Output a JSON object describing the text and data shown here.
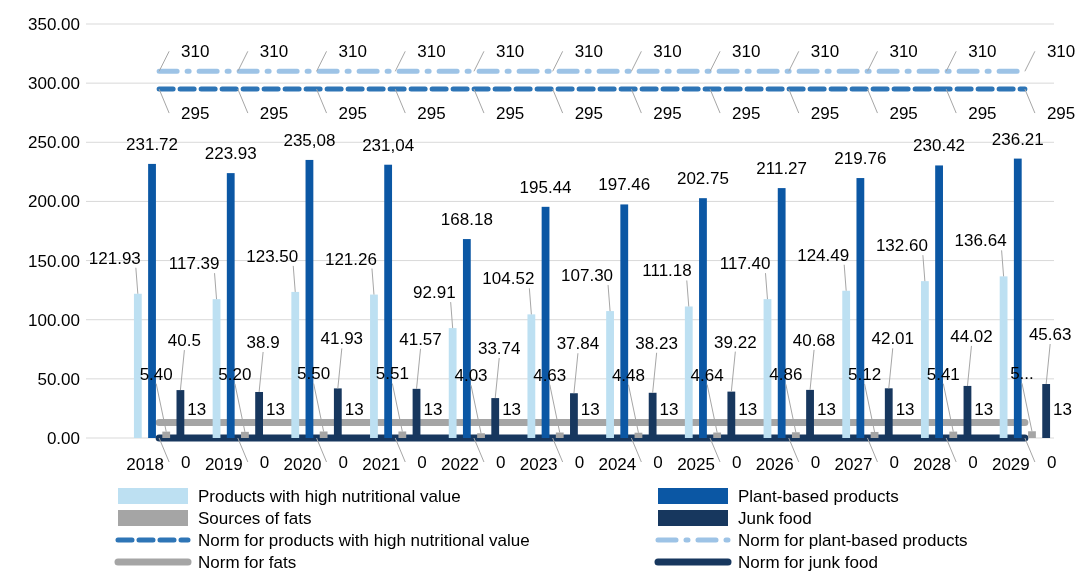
{
  "chart_data": {
    "type": "bar",
    "categories": [
      "2018",
      "2019",
      "2020",
      "2021",
      "2022",
      "2023",
      "2024",
      "2025",
      "2026",
      "2027",
      "2028",
      "2029"
    ],
    "series": [
      {
        "name": "Products with high nutritional value",
        "color": "#bde0f2",
        "values": [
          121.93,
          117.39,
          123.5,
          121.26,
          92.91,
          104.52,
          107.3,
          111.18,
          117.4,
          124.49,
          132.6,
          136.64
        ],
        "value_labels": [
          "121.93",
          "117.39",
          "123.50",
          "121.26",
          "92.91",
          "104.52",
          "107.30",
          "111.18",
          "117.40",
          "124.49",
          "132.60",
          "136.64"
        ]
      },
      {
        "name": "Plant-based products",
        "color": "#0b57a4",
        "values": [
          231.72,
          223.93,
          235.08,
          231.04,
          168.18,
          195.44,
          197.46,
          202.75,
          211.27,
          219.76,
          230.42,
          236.21
        ],
        "value_labels": [
          "231.72",
          "223.93",
          "235,08",
          "231,04",
          "168.18",
          "195.44",
          "197.46",
          "202.75",
          "211.27",
          "219.76",
          "230.42",
          "236.21"
        ]
      },
      {
        "name": "Sources of fats",
        "color": "#a5a5a5",
        "values": [
          5.4,
          5.2,
          5.5,
          5.51,
          4.03,
          4.63,
          4.48,
          4.64,
          4.86,
          5.12,
          5.41,
          5.7
        ],
        "value_labels": [
          "5.40",
          "5.20",
          "5.50",
          "5.51",
          "4.03",
          "4.63",
          "4.48",
          "4.64",
          "4.86",
          "5.12",
          "5.41",
          "5..."
        ]
      },
      {
        "name": "Junk food",
        "color": "#17375e",
        "values": [
          40.5,
          38.9,
          41.93,
          41.57,
          33.74,
          37.84,
          38.23,
          39.22,
          40.68,
          42.01,
          44.02,
          45.63
        ],
        "value_labels": [
          "40.5",
          "38.9",
          "41.93",
          "41.57",
          "33.74",
          "37.84",
          "38.23",
          "39.22",
          "40.68",
          "42.01",
          "44.02",
          "45.63"
        ]
      },
      {
        "name": "Norm for products with high nutritional value",
        "type": "line",
        "line_style": "dashed",
        "color": "#2e75b6",
        "values": [
          295,
          295,
          295,
          295,
          295,
          295,
          295,
          295,
          295,
          295,
          295,
          295
        ],
        "value_labels": [
          "295",
          "295",
          "295",
          "295",
          "295",
          "295",
          "295",
          "295",
          "295",
          "295",
          "295",
          "295"
        ]
      },
      {
        "name": "Norm for plant-based products",
        "type": "line",
        "line_style": "dashdot",
        "color": "#9dc3e6",
        "values": [
          310,
          310,
          310,
          310,
          310,
          310,
          310,
          310,
          310,
          310,
          310,
          310
        ],
        "value_labels": [
          "310",
          "310",
          "310",
          "310",
          "310",
          "310",
          "310",
          "310",
          "310",
          "310",
          "310",
          "310"
        ]
      },
      {
        "name": "Norm for fats",
        "type": "line",
        "line_style": "solid",
        "color": "#a5a5a5",
        "values": [
          13,
          13,
          13,
          13,
          13,
          13,
          13,
          13,
          13,
          13,
          13,
          13
        ],
        "value_labels": [
          "13",
          "13",
          "13",
          "13",
          "13",
          "13",
          "13",
          "13",
          "13",
          "13",
          "13",
          "13"
        ]
      },
      {
        "name": "Norm for junk food",
        "type": "line",
        "line_style": "solid",
        "color": "#17375e",
        "values": [
          0,
          0,
          0,
          0,
          0,
          0,
          0,
          0,
          0,
          0,
          0,
          0
        ],
        "value_labels": [
          "0",
          "0",
          "0",
          "0",
          "0",
          "0",
          "0",
          "0",
          "0",
          "0",
          "0",
          "0"
        ]
      }
    ],
    "ylim": [
      0,
      350
    ],
    "yticks": [
      {
        "value": 0,
        "label": "0.00"
      },
      {
        "value": 50,
        "label": "50.00"
      },
      {
        "value": 100,
        "label": "100.00"
      },
      {
        "value": 150,
        "label": "150.00"
      },
      {
        "value": 200,
        "label": "200.00"
      },
      {
        "value": 250,
        "label": "250.00"
      },
      {
        "value": 300,
        "label": "300.00"
      },
      {
        "value": 350,
        "label": "350.00"
      }
    ],
    "grid": "y",
    "legend": "bottom",
    "marker": "none"
  }
}
